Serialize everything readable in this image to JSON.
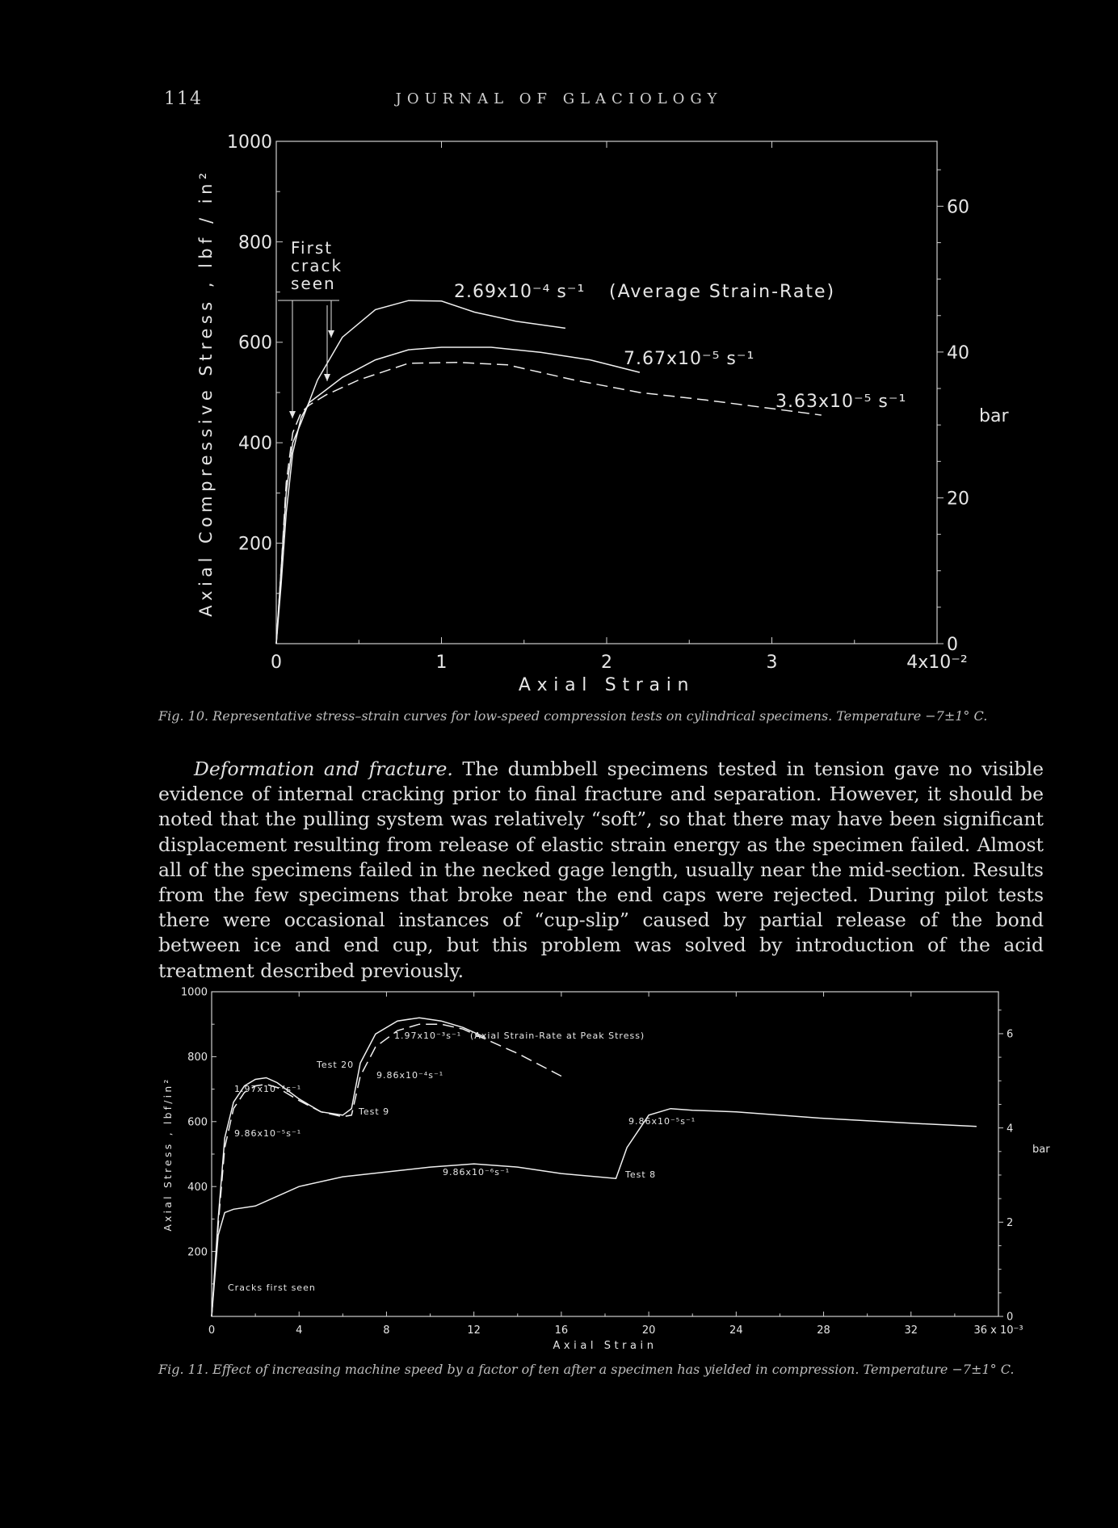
{
  "header": {
    "page_number": "114",
    "journal": "JOURNAL OF GLACIOLOGY"
  },
  "figure10": {
    "caption": "Fig. 10. Representative stress–strain curves for low-speed compression tests on cylindrical specimens. Temperature −7±1° C.",
    "annotation_first_crack": [
      "First",
      "crack",
      "seen"
    ],
    "rate_note": "(Average Strain-Rate)",
    "chart_data": {
      "type": "line",
      "xlabel": "Axial Strain",
      "ylabel": "Axial Compressive Stress , lbf / in²",
      "y2label": "bar",
      "xlim": [
        0,
        4
      ],
      "ylim": [
        0,
        1000
      ],
      "y2lim": [
        0,
        68.9
      ],
      "x_ticks": [
        "0",
        "1",
        "2",
        "3",
        "4x10⁻²"
      ],
      "y_ticks": [
        "1000",
        "800",
        "600",
        "400",
        "200"
      ],
      "y2_ticks": [
        "0",
        "20",
        "40",
        "60"
      ],
      "series": [
        {
          "name": "2.69x10⁻⁴ s⁻¹",
          "style": "solid",
          "x": [
            0,
            0.03,
            0.06,
            0.1,
            0.15,
            0.25,
            0.4,
            0.6,
            0.8,
            1.0,
            1.2,
            1.45,
            1.75
          ],
          "y": [
            0,
            150,
            300,
            400,
            440,
            525,
            610,
            665,
            683,
            682,
            660,
            642,
            628
          ]
        },
        {
          "name": "7.67x10⁻⁵ s⁻¹",
          "style": "solid",
          "x": [
            0,
            0.03,
            0.06,
            0.1,
            0.15,
            0.2,
            0.3,
            0.4,
            0.6,
            0.8,
            1.0,
            1.3,
            1.6,
            1.9,
            2.2
          ],
          "y": [
            0,
            120,
            260,
            380,
            450,
            480,
            505,
            530,
            565,
            585,
            590,
            590,
            580,
            565,
            540
          ]
        },
        {
          "name": "3.63x10⁻⁵ s⁻¹",
          "style": "dashed",
          "x": [
            0,
            0.03,
            0.06,
            0.1,
            0.15,
            0.2,
            0.3,
            0.5,
            0.8,
            1.1,
            1.4,
            1.8,
            2.2,
            2.6,
            3.0,
            3.3
          ],
          "y": [
            0,
            150,
            320,
            420,
            460,
            475,
            495,
            525,
            558,
            560,
            555,
            525,
            500,
            485,
            468,
            455
          ]
        }
      ]
    }
  },
  "paragraph": {
    "heading": "Deformation and fracture.",
    "text": "The dumbbell specimens tested in tension gave no visible evidence of internal cracking prior to final fracture and separation. However, it should be noted that the pulling system was relatively “soft”, so that there may have been significant displacement resulting from release of elastic strain energy as the specimen failed. Almost all of the specimens failed in the necked gage length, usually near the mid-section. Results from the few specimens that broke near the end caps were rejected. During pilot tests there were occasional instances of “cup-slip” caused by partial release of the bond between ice and end cup, but this problem was solved by introduction of the acid treatment described previously."
  },
  "figure11": {
    "caption": "Fig. 11. Effect of increasing machine speed by a factor of ten after a specimen has yielded in compression. Temperature −7±1° C.",
    "rate_note": "(Axial Strain-Rate at Peak Stress)",
    "labels": {
      "test20": "Test 20",
      "test9": "Test 9",
      "test8": "Test 8",
      "cracks": "Cracks first seen",
      "r_a": "1.97x10⁻⁴s⁻¹",
      "r_b": "9.86x10⁻⁵s⁻¹",
      "r_c": "1.97x10⁻³s⁻¹",
      "r_d": "9.86x10⁻⁴s⁻¹",
      "r_e": "9.86x10⁻⁶s⁻¹",
      "r_f": "9.86x10⁻⁵s⁻¹"
    },
    "chart_data": {
      "type": "line",
      "xlabel": "Axial Strain",
      "ylabel": "Axial Stress , lbf/in²",
      "y2label": "bar",
      "xlim": [
        0,
        36
      ],
      "ylim": [
        0,
        1000
      ],
      "y2lim": [
        0,
        68.9
      ],
      "x_ticks": [
        "0",
        "4",
        "8",
        "12",
        "16",
        "20",
        "24",
        "28",
        "32",
        "36 x 10⁻³"
      ],
      "y_ticks": [
        "1000",
        "800",
        "600",
        "400",
        "200"
      ],
      "y2_ticks": [
        "0",
        "2",
        "4",
        "6"
      ],
      "series": [
        {
          "name": "Test 20",
          "style": "solid",
          "x": [
            0,
            0.3,
            0.6,
            1.0,
            1.5,
            2.0,
            2.5,
            3.0,
            4.0,
            5.0,
            6.0,
            6.4,
            6.8,
            7.5,
            8.5,
            9.5,
            10.5,
            11.5,
            12.5
          ],
          "y": [
            0,
            300,
            550,
            660,
            710,
            730,
            735,
            720,
            670,
            630,
            620,
            640,
            780,
            870,
            910,
            920,
            910,
            890,
            860
          ]
        },
        {
          "name": "Test 9",
          "style": "dashed",
          "x": [
            0,
            0.3,
            0.6,
            1.0,
            1.5,
            2.0,
            2.5,
            3.0,
            4.0,
            5.0,
            6.0,
            6.4,
            6.8,
            7.5,
            8.5,
            9.5,
            10.5,
            11.5,
            12.5,
            14.0,
            16.0
          ],
          "y": [
            0,
            280,
            520,
            640,
            690,
            710,
            715,
            705,
            665,
            630,
            615,
            620,
            740,
            830,
            880,
            900,
            900,
            885,
            855,
            810,
            740
          ]
        },
        {
          "name": "Test 8",
          "style": "solid",
          "x": [
            0,
            0.3,
            0.6,
            1.0,
            2.0,
            4.0,
            6.0,
            8.0,
            10.0,
            12.0,
            14.0,
            16.0,
            18.5,
            19.0,
            20.0,
            21.0,
            22.0,
            24.0,
            28.0,
            32.0,
            35.0
          ],
          "y": [
            0,
            250,
            320,
            330,
            340,
            400,
            430,
            445,
            460,
            470,
            460,
            440,
            425,
            520,
            620,
            640,
            635,
            630,
            610,
            595,
            585
          ]
        }
      ]
    }
  }
}
